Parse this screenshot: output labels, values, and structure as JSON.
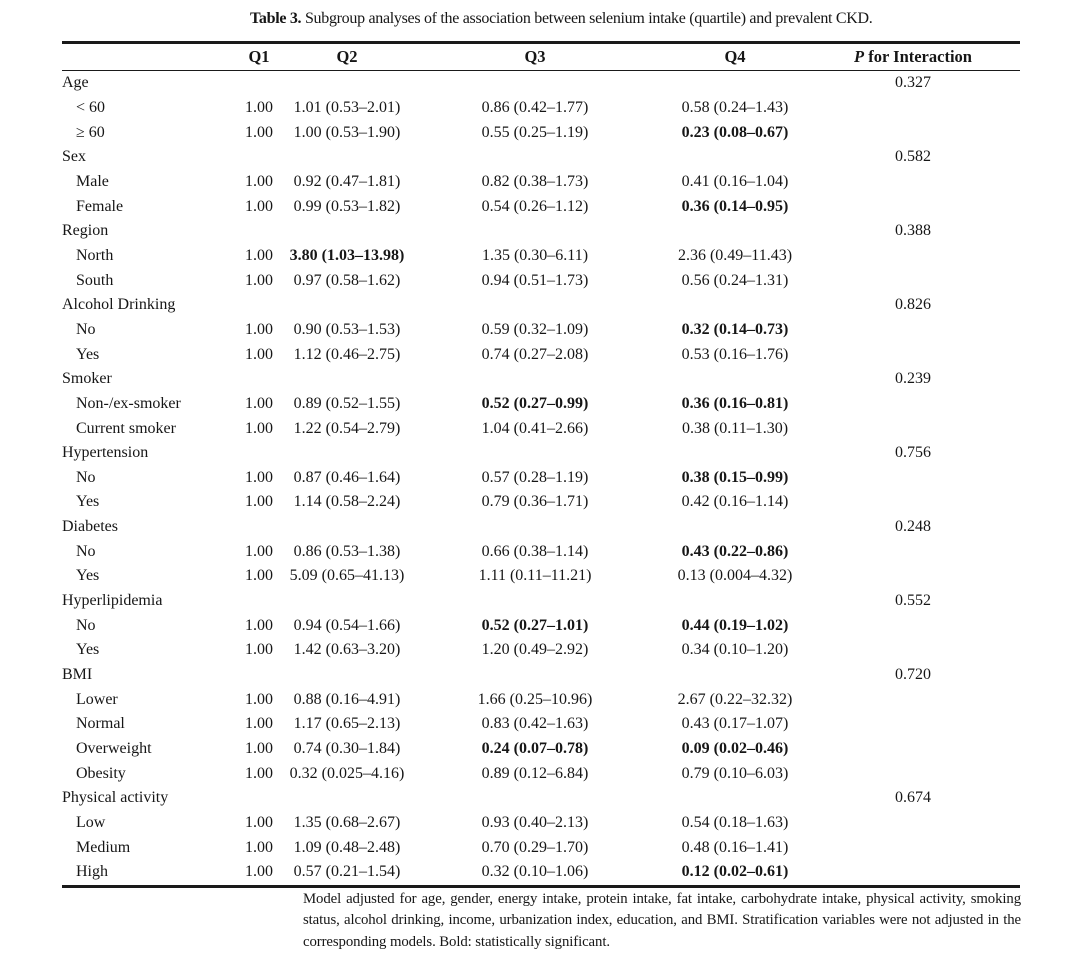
{
  "table": {
    "title_label": "Table 3.",
    "title_text": " Subgroup analyses of the association between selenium intake (quartile) and prevalent CKD.",
    "header": {
      "label": "",
      "q1": "Q1",
      "q2": "Q2",
      "q3": "Q3",
      "q4": "Q4",
      "p_italic": "P",
      "p_rest": " for Interaction"
    },
    "rows": [
      {
        "label": "Age",
        "group": true,
        "p": "0.327"
      },
      {
        "label": "< 60",
        "q1": "1.00",
        "q2": "1.01 (0.53–2.01)",
        "q3": "0.86 (0.42–1.77)",
        "q4": "0.58 (0.24–1.43)"
      },
      {
        "label": "≥ 60",
        "q1": "1.00",
        "q2": "1.00 (0.53–1.90)",
        "q3": "0.55 (0.25–1.19)",
        "q4": "0.23 (0.08–0.67)",
        "bold": [
          "q4"
        ]
      },
      {
        "label": "Sex",
        "group": true,
        "p": "0.582"
      },
      {
        "label": "Male",
        "q1": "1.00",
        "q2": "0.92 (0.47–1.81)",
        "q3": "0.82 (0.38–1.73)",
        "q4": "0.41 (0.16–1.04)"
      },
      {
        "label": "Female",
        "q1": "1.00",
        "q2": "0.99 (0.53–1.82)",
        "q3": "0.54 (0.26–1.12)",
        "q4": "0.36 (0.14–0.95)",
        "bold": [
          "q4"
        ]
      },
      {
        "label": "Region",
        "group": true,
        "p": "0.388"
      },
      {
        "label": "North",
        "q1": "1.00",
        "q2": "3.80 (1.03–13.98)",
        "q3": "1.35 (0.30–6.11)",
        "q4": "2.36 (0.49–11.43)",
        "bold": [
          "q2"
        ]
      },
      {
        "label": "South",
        "q1": "1.00",
        "q2": "0.97 (0.58–1.62)",
        "q3": "0.94 (0.51–1.73)",
        "q4": "0.56 (0.24–1.31)"
      },
      {
        "label": "Alcohol Drinking",
        "group": true,
        "p": "0.826"
      },
      {
        "label": "No",
        "q1": "1.00",
        "q2": "0.90 (0.53–1.53)",
        "q3": "0.59 (0.32–1.09)",
        "q4": "0.32 (0.14–0.73)",
        "bold": [
          "q4"
        ]
      },
      {
        "label": "Yes",
        "q1": "1.00",
        "q2": "1.12 (0.46–2.75)",
        "q3": "0.74 (0.27–2.08)",
        "q4": "0.53 (0.16–1.76)"
      },
      {
        "label": "Smoker",
        "group": true,
        "p": "0.239"
      },
      {
        "label": "Non-/ex-smoker",
        "q1": "1.00",
        "q2": "0.89 (0.52–1.55)",
        "q3": "0.52 (0.27–0.99)",
        "q4": "0.36 (0.16–0.81)",
        "bold": [
          "q3",
          "q4"
        ]
      },
      {
        "label": "Current smoker",
        "q1": "1.00",
        "q2": "1.22 (0.54–2.79)",
        "q3": "1.04 (0.41–2.66)",
        "q4": "0.38 (0.11–1.30)"
      },
      {
        "label": "Hypertension",
        "group": true,
        "p": "0.756"
      },
      {
        "label": "No",
        "q1": "1.00",
        "q2": "0.87 (0.46–1.64)",
        "q3": "0.57 (0.28–1.19)",
        "q4": "0.38 (0.15–0.99)",
        "bold": [
          "q4"
        ]
      },
      {
        "label": "Yes",
        "q1": "1.00",
        "q2": "1.14 (0.58–2.24)",
        "q3": "0.79 (0.36–1.71)",
        "q4": "0.42 (0.16–1.14)"
      },
      {
        "label": "Diabetes",
        "group": true,
        "p": "0.248"
      },
      {
        "label": "No",
        "q1": "1.00",
        "q2": "0.86 (0.53–1.38)",
        "q3": "0.66 (0.38–1.14)",
        "q4": "0.43 (0.22–0.86)",
        "bold": [
          "q4"
        ]
      },
      {
        "label": "Yes",
        "q1": "1.00",
        "q2": "5.09 (0.65–41.13)",
        "q3": "1.11 (0.11–11.21)",
        "q4": "0.13 (0.004–4.32)"
      },
      {
        "label": "Hyperlipidemia",
        "group": true,
        "p": "0.552"
      },
      {
        "label": "No",
        "q1": "1.00",
        "q2": "0.94 (0.54–1.66)",
        "q3": "0.52 (0.27–1.01)",
        "q4": "0.44 (0.19–1.02)",
        "bold": [
          "q3",
          "q4"
        ]
      },
      {
        "label": "Yes",
        "q1": "1.00",
        "q2": "1.42 (0.63–3.20)",
        "q3": "1.20 (0.49–2.92)",
        "q4": "0.34 (0.10–1.20)"
      },
      {
        "label": "BMI",
        "group": true,
        "p": "0.720"
      },
      {
        "label": "Lower",
        "q1": "1.00",
        "q2": "0.88 (0.16–4.91)",
        "q3": "1.66 (0.25–10.96)",
        "q4": "2.67 (0.22–32.32)"
      },
      {
        "label": "Normal",
        "q1": "1.00",
        "q2": "1.17 (0.65–2.13)",
        "q3": "0.83 (0.42–1.63)",
        "q4": "0.43 (0.17–1.07)"
      },
      {
        "label": "Overweight",
        "q1": "1.00",
        "q2": "0.74 (0.30–1.84)",
        "q3": "0.24 (0.07–0.78)",
        "q4": "0.09 (0.02–0.46)",
        "bold": [
          "q3",
          "q4"
        ]
      },
      {
        "label": "Obesity",
        "q1": "1.00",
        "q2": "0.32 (0.025–4.16)",
        "q3": "0.89 (0.12–6.84)",
        "q4": "0.79 (0.10–6.03)"
      },
      {
        "label": "Physical activity",
        "group": true,
        "p": "0.674"
      },
      {
        "label": "Low",
        "q1": "1.00",
        "q2": "1.35 (0.68–2.67)",
        "q3": "0.93 (0.40–2.13)",
        "q4": "0.54 (0.18–1.63)"
      },
      {
        "label": "Medium",
        "q1": "1.00",
        "q2": "1.09 (0.48–2.48)",
        "q3": "0.70 (0.29–1.70)",
        "q4": "0.48 (0.16–1.41)"
      },
      {
        "label": "High",
        "q1": "1.00",
        "q2": "0.57 (0.21–1.54)",
        "q3": "0.32 (0.10–1.06)",
        "q4": "0.12 (0.02–0.61)",
        "bold": [
          "q4"
        ]
      }
    ],
    "footnote": "Model adjusted for age, gender, energy intake, protein intake, fat intake, carbohydrate intake, physical activity, smoking status, alcohol drinking, income, urbanization index, education, and BMI. Stratification variables were not adjusted in the corresponding models. Bold: statistically significant."
  }
}
